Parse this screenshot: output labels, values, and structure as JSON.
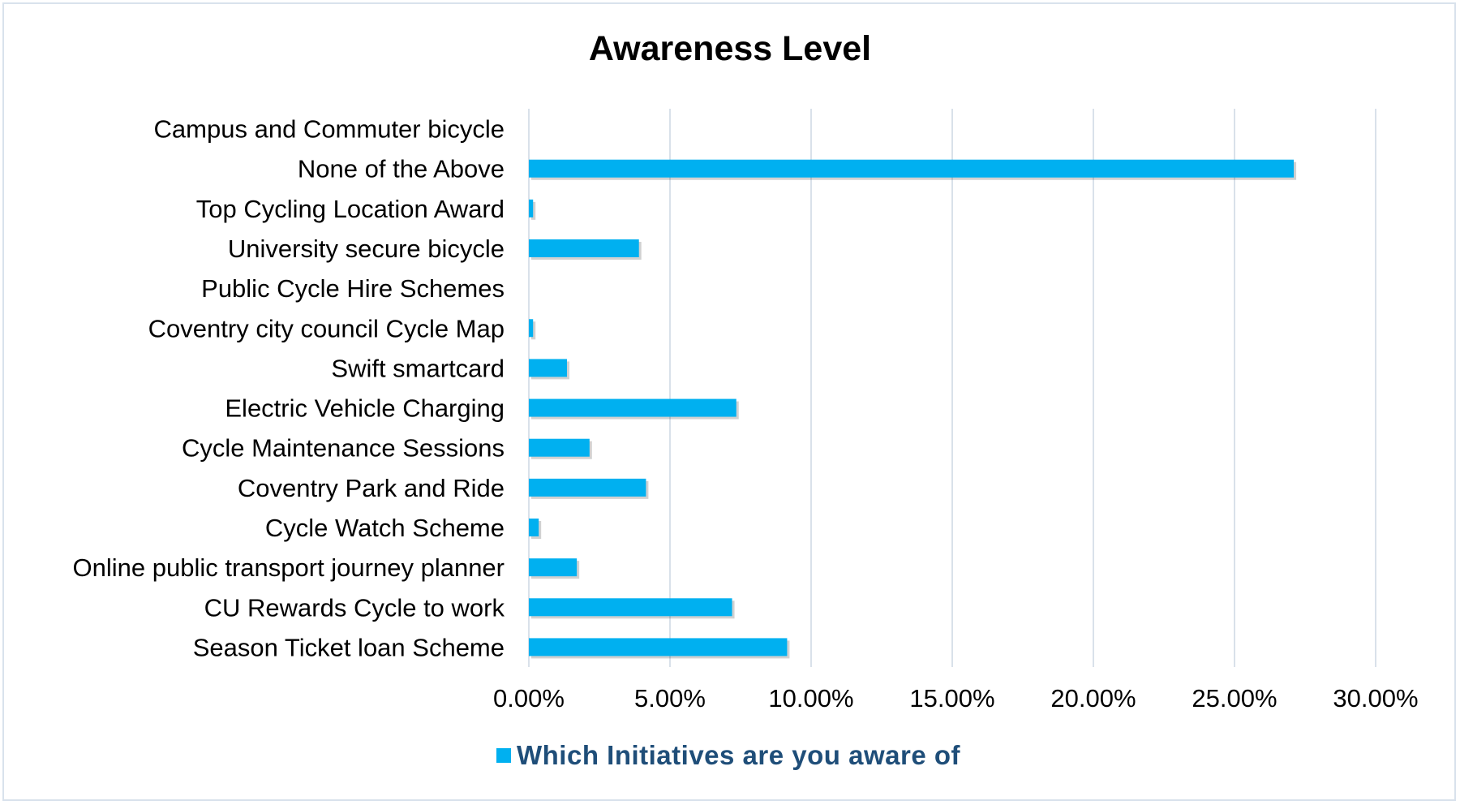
{
  "chart_data": {
    "type": "bar",
    "orientation": "horizontal",
    "title": "Awareness Level",
    "xlabel": "",
    "ylabel": "",
    "categories": [
      "Campus and Commuter bicycle",
      "None of the Above",
      "Top Cycling Location Award",
      "University secure bicycle",
      "Public Cycle Hire Schemes",
      "Coventry city council Cycle Map",
      "Swift smartcard",
      "Electric Vehicle Charging",
      "Cycle Maintenance Sessions",
      "Coventry Park and Ride",
      "Cycle Watch Scheme",
      "Online public transport journey planner",
      "CU Rewards Cycle to work",
      "Season Ticket loan Scheme"
    ],
    "series": [
      {
        "name": "Which Initiatives are you aware of",
        "color": "#00b0f0",
        "values": [
          0.0,
          27.1,
          0.15,
          3.9,
          0.0,
          0.15,
          1.35,
          7.35,
          2.15,
          4.15,
          0.35,
          1.7,
          7.2,
          9.15
        ]
      }
    ],
    "xlim": [
      0,
      30
    ],
    "x_ticks": [
      "0.00%",
      "5.00%",
      "10.00%",
      "15.00%",
      "20.00%",
      "25.00%",
      "30.00%"
    ],
    "x_tick_values": [
      0,
      5,
      10,
      15,
      20,
      25,
      30
    ],
    "grid": true,
    "legend_position": "bottom",
    "legend_text_color": "#1f4e79",
    "gridline_color": "#d9e1ea"
  }
}
